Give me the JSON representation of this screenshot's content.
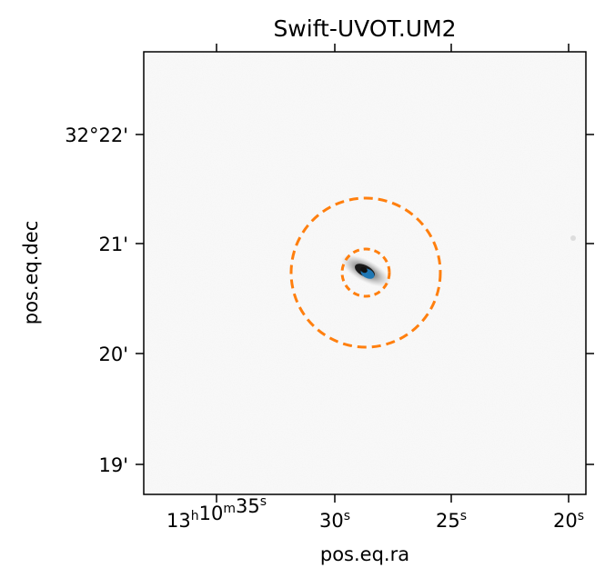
{
  "figure": {
    "title": "Swift-UVOT.UM2",
    "xlabel": "pos.eq.ra",
    "ylabel": "pos.eq.dec",
    "x_ticks": [
      {
        "value": "13h10m35s",
        "parts": [
          {
            "t": "13"
          },
          {
            "t": "h",
            "sup": true
          },
          {
            "t": "10"
          },
          {
            "t": "m",
            "sup": true
          },
          {
            "t": "35"
          },
          {
            "t": "s",
            "sup": true
          }
        ]
      },
      {
        "value": "30s",
        "parts": [
          {
            "t": "30"
          },
          {
            "t": "s",
            "sup": true
          }
        ]
      },
      {
        "value": "25s",
        "parts": [
          {
            "t": "25"
          },
          {
            "t": "s",
            "sup": true
          }
        ]
      },
      {
        "value": "20s",
        "parts": [
          {
            "t": "20"
          },
          {
            "t": "s",
            "sup": true
          }
        ]
      }
    ],
    "y_ticks": [
      "32°22'",
      "21'",
      "20'",
      "19'"
    ],
    "colors": {
      "aperture": "#ff7f0e",
      "source_marker": "#1f77b4",
      "axes": "#000000",
      "background": "#fafafa"
    },
    "overlays": [
      {
        "name": "background-annulus-outer",
        "style": "dashed circle"
      },
      {
        "name": "background-annulus-inner",
        "style": "dashed circle"
      }
    ]
  }
}
